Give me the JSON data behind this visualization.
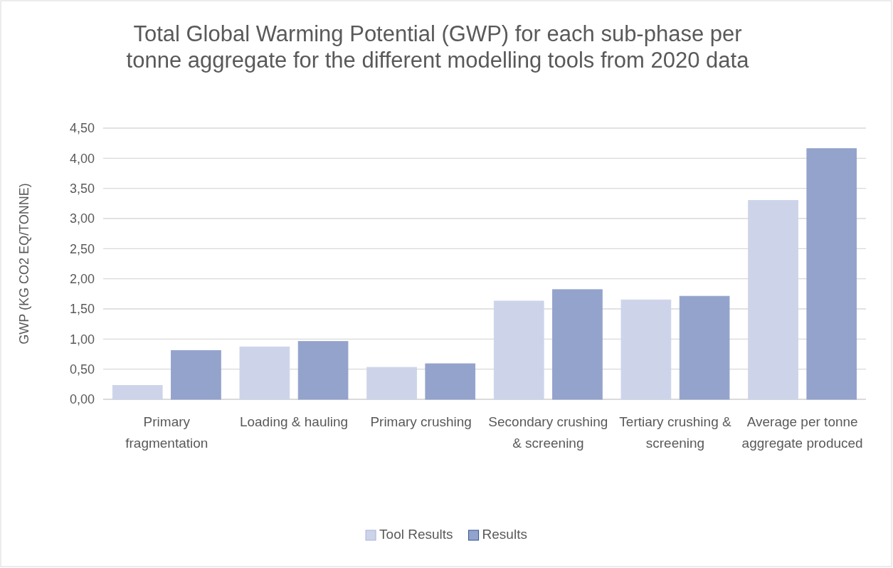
{
  "chart_data": {
    "type": "bar",
    "title": "Total Global Warming Potential (GWP) for each sub-phase per tonne aggregate for the different modelling tools from 2020 data",
    "ylabel": "GWP (KG CO2 EQ/TONNE)",
    "categories": [
      "Primary fragmentation",
      "Loading & hauling",
      "Primary crushing",
      "Secondary crushing & screening",
      "Tertiary crushing & screening",
      "Average per tonne aggregate produced"
    ],
    "series": [
      {
        "name": "Tool Results",
        "color": "#cdd4ea",
        "values": [
          0.23,
          0.87,
          0.53,
          1.63,
          1.65,
          3.3
        ]
      },
      {
        "name": "Results",
        "color": "#94a3cc",
        "values": [
          0.81,
          0.96,
          0.59,
          1.82,
          1.71,
          4.16
        ]
      }
    ],
    "ylim": [
      0,
      4.5
    ],
    "yticks": [
      {
        "value": 0,
        "label": "0,00"
      },
      {
        "value": 0.5,
        "label": "0,50"
      },
      {
        "value": 1,
        "label": "1,00"
      },
      {
        "value": 1.5,
        "label": "1,50"
      },
      {
        "value": 2,
        "label": "2,00"
      },
      {
        "value": 2.5,
        "label": "2,50"
      },
      {
        "value": 3,
        "label": "3,00"
      },
      {
        "value": 3.5,
        "label": "3,50"
      },
      {
        "value": 4,
        "label": "4,00"
      },
      {
        "value": 4.5,
        "label": "4,50"
      }
    ],
    "grid": "y",
    "legend": "bottom"
  }
}
